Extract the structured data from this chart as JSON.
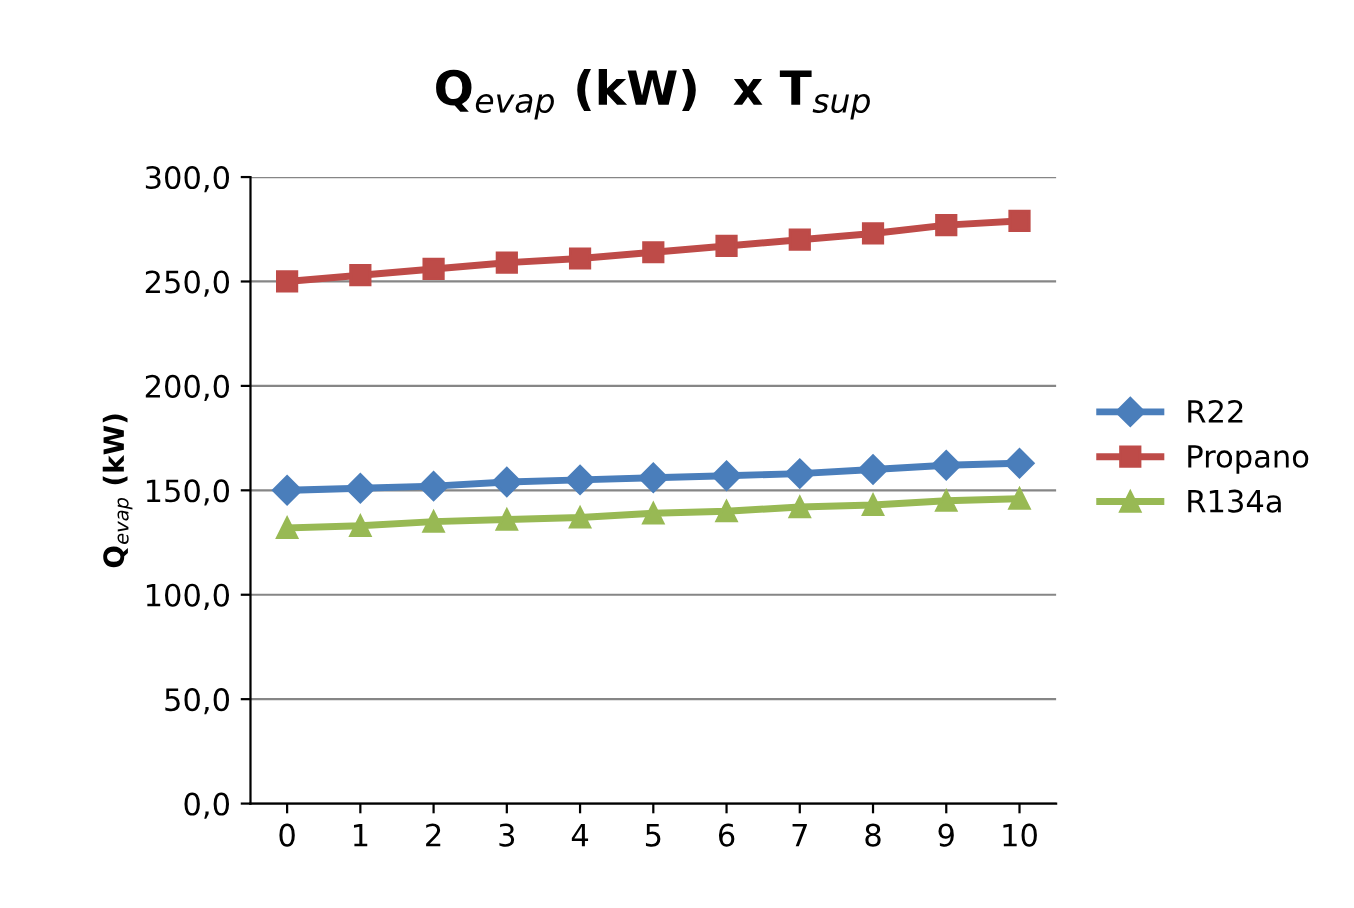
{
  "chart_data": {
    "type": "line",
    "title": "Q$_{evap}$ (kW)  x T$_{sup}$",
    "ylabel": "Q$_{evap}$ (kW)",
    "categories": [
      "0",
      "1",
      "2",
      "3",
      "4",
      "5",
      "6",
      "7",
      "8",
      "9",
      "10"
    ],
    "series": [
      {
        "name": "R22",
        "color": "#4a7ebb",
        "marker": "diamond",
        "values": [
          150,
          151,
          152,
          154,
          155,
          156,
          157,
          158,
          160,
          162,
          163
        ]
      },
      {
        "name": "Propano",
        "color": "#be4b48",
        "marker": "square",
        "values": [
          250,
          253,
          256,
          259,
          261,
          264,
          267,
          270,
          273,
          277,
          279
        ]
      },
      {
        "name": "R134a",
        "color": "#98b954",
        "marker": "triangle",
        "values": [
          132,
          133,
          135,
          136,
          137,
          139,
          140,
          142,
          143,
          145,
          146
        ]
      }
    ],
    "ylim": [
      0,
      300
    ],
    "yticks": [
      {
        "value": 0,
        "label": "0,0"
      },
      {
        "value": 50,
        "label": "50,0"
      },
      {
        "value": 100,
        "label": "100,0"
      },
      {
        "value": 150,
        "label": "150,0"
      },
      {
        "value": 200,
        "label": "200,0"
      },
      {
        "value": 250,
        "label": "250,0"
      },
      {
        "value": 300,
        "label": "300,0"
      }
    ],
    "grid": "y",
    "legend": "right",
    "line_style": "solid"
  }
}
